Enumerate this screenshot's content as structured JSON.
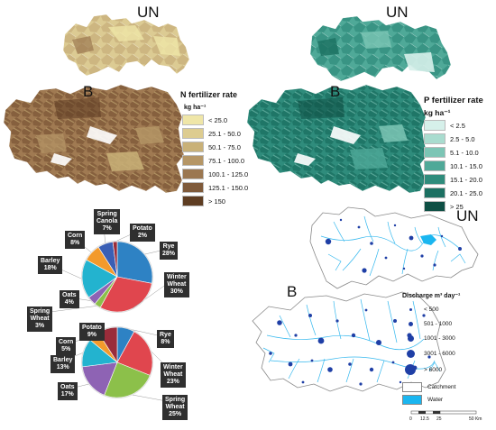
{
  "n_map": {
    "title_un": "UN",
    "title_b": "B",
    "legend_title": "N fertilizer rate",
    "legend_unit": "kg ha⁻¹",
    "classes": [
      {
        "label": "< 25.0",
        "color": "#efe6a8"
      },
      {
        "label": "25.1 - 50.0",
        "color": "#ddcc90"
      },
      {
        "label": "50.1 - 75.0",
        "color": "#c9b178"
      },
      {
        "label": "75.1 - 100.0",
        "color": "#b59666"
      },
      {
        "label": "100.1 - 125.0",
        "color": "#9b7750"
      },
      {
        "label": "125.1 - 150.0",
        "color": "#7f5a3a"
      },
      {
        "label": "> 150",
        "color": "#5e3d22"
      }
    ]
  },
  "p_map": {
    "title_un": "UN",
    "title_b": "B",
    "legend_title": "P fertilizer rate",
    "legend_unit": "kg ha⁻¹",
    "classes": [
      {
        "label": "< 2.5",
        "color": "#d6f0ea"
      },
      {
        "label": "2.5 - 5.0",
        "color": "#a9dccf"
      },
      {
        "label": "5.1 - 10.0",
        "color": "#7cc5b5"
      },
      {
        "label": "10.1 - 15.0",
        "color": "#4fa998"
      },
      {
        "label": "15.1 - 20.0",
        "color": "#2f8c7c"
      },
      {
        "label": "20.1 - 25.0",
        "color": "#1c7062"
      },
      {
        "label": "> 25",
        "color": "#0e4f44"
      }
    ]
  },
  "pies": {
    "un": [
      {
        "name": "Rye",
        "pct": 28,
        "label": "Rye\n28%",
        "color": "#2e82c4"
      },
      {
        "name": "Winter Wheat",
        "pct": 30,
        "label": "Winter\nWheat\n30%",
        "color": "#e0464e"
      },
      {
        "name": "Spring Wheat",
        "pct": 3,
        "label": "Spring\nWheat\n3%",
        "color": "#8cc04a"
      },
      {
        "name": "Oats",
        "pct": 4,
        "label": "Oats\n4%",
        "color": "#8e63b4"
      },
      {
        "name": "Barley",
        "pct": 18,
        "label": "Barley\n18%",
        "color": "#23b3cf"
      },
      {
        "name": "Corn",
        "pct": 8,
        "label": "Corn\n8%",
        "color": "#f39a2c"
      },
      {
        "name": "Spring Canola",
        "pct": 7,
        "label": "Spring\nCanola\n7%",
        "color": "#3a5fb5"
      },
      {
        "name": "Potato",
        "pct": 2,
        "label": "Potato\n2%",
        "color": "#9a2c3a"
      }
    ],
    "b": [
      {
        "name": "Rye",
        "pct": 8,
        "label": "Rye\n8%",
        "color": "#2e82c4"
      },
      {
        "name": "Winter Wheat",
        "pct": 23,
        "label": "Winter\nWheat\n23%",
        "color": "#e0464e"
      },
      {
        "name": "Spring Wheat",
        "pct": 25,
        "label": "Spring\nWheat\n25%",
        "color": "#8cc04a"
      },
      {
        "name": "Oats",
        "pct": 17,
        "label": "Oats\n17%",
        "color": "#8e63b4"
      },
      {
        "name": "Barley",
        "pct": 13,
        "label": "Barley\n13%",
        "color": "#23b3cf"
      },
      {
        "name": "Corn",
        "pct": 5,
        "label": "Corn\n5%",
        "color": "#f39a2c"
      },
      {
        "name": "Potato",
        "pct": 9,
        "label": "Potato\n9%",
        "color": "#9a2c3a"
      }
    ]
  },
  "discharge": {
    "title_un": "UN",
    "title_b": "B",
    "legend_title": "Discharge m³ day⁻¹",
    "classes": [
      {
        "label": "< 500"
      },
      {
        "label": "501 - 1000"
      },
      {
        "label": "1001 - 3000"
      },
      {
        "label": "3001 - 6000"
      },
      {
        "label": "> 6000"
      }
    ],
    "catchment_label": "Catchment",
    "water_label": "Water",
    "water_color": "#1ab6f0",
    "point_color": "#1f3fa6",
    "river_color": "#35b8ee",
    "scale": [
      "0",
      "12.5",
      "25",
      "50 Km"
    ]
  },
  "colors": {
    "n_dark": "#5e3d22",
    "p_dark": "#0e4f44"
  }
}
